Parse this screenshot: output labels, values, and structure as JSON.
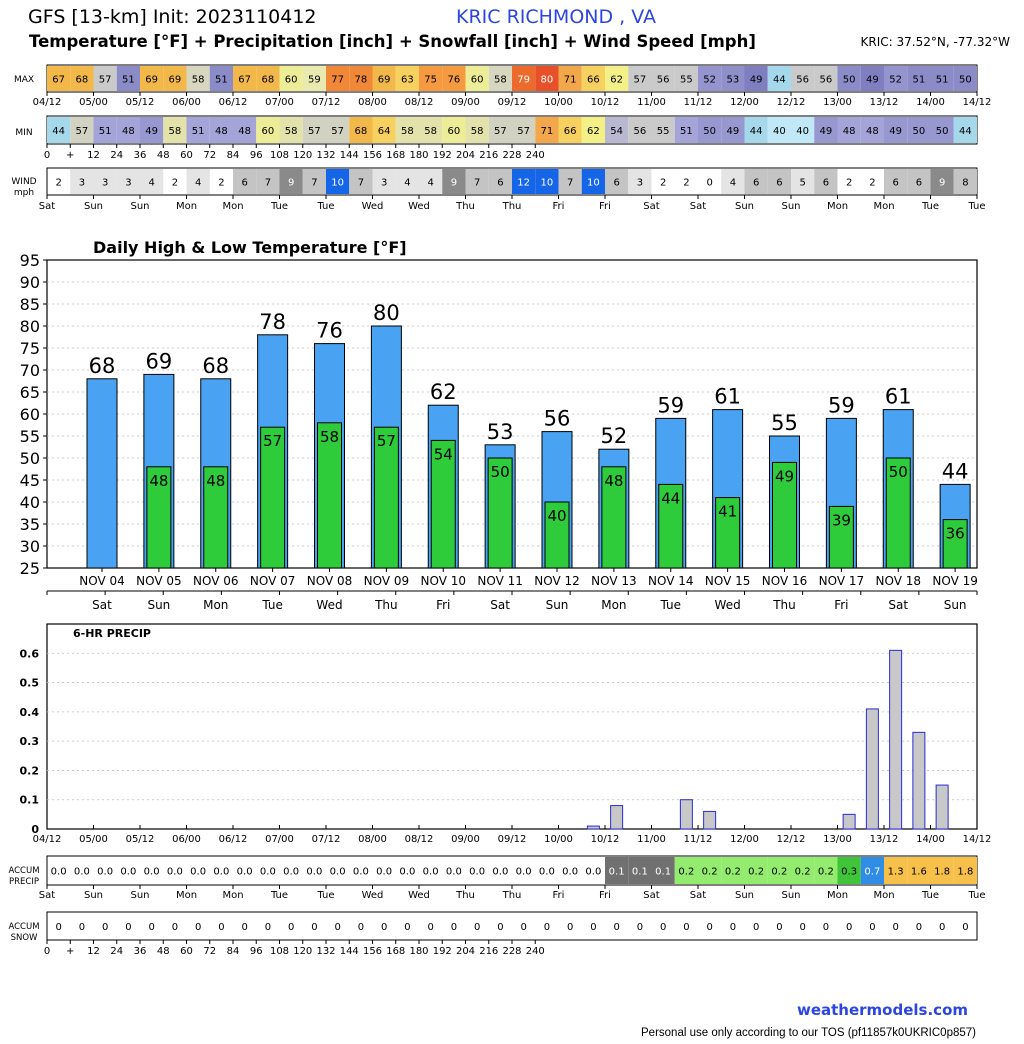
{
  "header": {
    "title": "GFS [13-km] Init: 2023110412",
    "station": "KRIC RICHMOND      , VA",
    "subtitle": "Temperature [°F] + Precipitation [inch] + Snowfall [inch] + Wind Speed [mph]",
    "coords": "KRIC: 37.52°N, -77.32°W"
  },
  "footer": {
    "site": "weathermodels.com",
    "tos": "Personal use only according to our TOS (pf11857k0UKRIC0p857)"
  },
  "strip_labels": {
    "max": "MAX",
    "min": "MIN",
    "wind": "WIND",
    "wind_unit": "mph",
    "accum_precip_1": "ACCUM",
    "accum_precip_2": "PRECIP",
    "accum_snow_1": "ACCUM",
    "accum_snow_2": "SNOW"
  },
  "time_axis": {
    "date_labels": [
      "04/12",
      "05/00",
      "05/12",
      "06/00",
      "06/12",
      "07/00",
      "07/12",
      "08/00",
      "08/12",
      "09/00",
      "09/12",
      "10/00",
      "10/12",
      "11/00",
      "11/12",
      "12/00",
      "12/12",
      "13/00",
      "13/12",
      "14/00",
      "14/12"
    ],
    "hour_labels": [
      "0",
      "+",
      "12",
      "24",
      "36",
      "48",
      "60",
      "72",
      "84",
      "96",
      "108",
      "120",
      "132",
      "144",
      "156",
      "168",
      "180",
      "192",
      "204",
      "216",
      "228",
      "240"
    ],
    "day_labels": [
      "Sat",
      "Sun",
      "Sun",
      "Mon",
      "Mon",
      "Tue",
      "Tue",
      "Wed",
      "Wed",
      "Thu",
      "Thu",
      "Fri",
      "Fri",
      "Sat",
      "Sat",
      "Sun",
      "Sun",
      "Mon",
      "Mon",
      "Tue",
      "Tue"
    ]
  },
  "max_strip": [
    67,
    68,
    57,
    51,
    69,
    69,
    58,
    51,
    67,
    68,
    60,
    59,
    77,
    78,
    69,
    63,
    75,
    76,
    60,
    58,
    79,
    80,
    71,
    66,
    62,
    57,
    56,
    55,
    52,
    53,
    49,
    44,
    56,
    56,
    50,
    49,
    52,
    51,
    51,
    50
  ],
  "min_strip": [
    44,
    57,
    51,
    48,
    49,
    58,
    51,
    48,
    48,
    60,
    58,
    57,
    57,
    68,
    64,
    58,
    58,
    60,
    58,
    57,
    57,
    71,
    66,
    62,
    54,
    56,
    55,
    51,
    50,
    49,
    44,
    40,
    40,
    49,
    48,
    48,
    49,
    50,
    50,
    44
  ],
  "wind_strip": [
    2,
    3,
    3,
    3,
    4,
    2,
    4,
    2,
    6,
    7,
    9,
    7,
    10,
    7,
    3,
    4,
    4,
    9,
    7,
    6,
    12,
    10,
    7,
    10,
    6,
    3,
    2,
    2,
    0,
    4,
    6,
    6,
    5,
    6,
    2,
    2,
    6,
    6,
    9,
    8
  ],
  "accum_precip_strip": [
    "0.0",
    "0.0",
    "0.0",
    "0.0",
    "0.0",
    "0.0",
    "0.0",
    "0.0",
    "0.0",
    "0.0",
    "0.0",
    "0.0",
    "0.0",
    "0.0",
    "0.0",
    "0.0",
    "0.0",
    "0.0",
    "0.0",
    "0.0",
    "0.0",
    "0.0",
    "0.0",
    "0.0",
    "0.1",
    "0.1",
    "0.1",
    "0.2",
    "0.2",
    "0.2",
    "0.2",
    "0.2",
    "0.2",
    "0.2",
    "0.3",
    "0.7",
    "1.3",
    "1.6",
    "1.8",
    "1.8"
  ],
  "accum_snow_strip": [
    0,
    0,
    0,
    0,
    0,
    0,
    0,
    0,
    0,
    0,
    0,
    0,
    0,
    0,
    0,
    0,
    0,
    0,
    0,
    0,
    0,
    0,
    0,
    0,
    0,
    0,
    0,
    0,
    0,
    0,
    0,
    0,
    0,
    0,
    0,
    0,
    0,
    0,
    0,
    0
  ],
  "chart_data": [
    {
      "type": "bar",
      "title": "Daily High & Low Temperature [°F]",
      "categories": [
        "NOV 04",
        "NOV 05",
        "NOV 06",
        "NOV 07",
        "NOV 08",
        "NOV 09",
        "NOV 10",
        "NOV 11",
        "NOV 12",
        "NOV 13",
        "NOV 14",
        "NOV 15",
        "NOV 16",
        "NOV 17",
        "NOV 18",
        "NOV 19"
      ],
      "weekdays": [
        "Sat",
        "Sun",
        "Mon",
        "Tue",
        "Wed",
        "Thu",
        "Fri",
        "Sat",
        "Sun",
        "Mon",
        "Tue",
        "Wed",
        "Thu",
        "Fri",
        "Sat",
        "Sun"
      ],
      "series": [
        {
          "values": [
            68,
            69,
            68,
            78,
            76,
            80,
            62,
            53,
            56,
            52,
            59,
            61,
            55,
            59,
            61,
            44
          ],
          "color": "#4aa3f2"
        },
        {
          "values": [
            null,
            48,
            48,
            57,
            58,
            57,
            54,
            50,
            40,
            48,
            44,
            41,
            49,
            39,
            50,
            36
          ],
          "color": "#2ecc3a"
        }
      ],
      "ylim": [
        25,
        95
      ],
      "yticks": [
        25,
        30,
        35,
        40,
        45,
        50,
        55,
        60,
        65,
        70,
        75,
        80,
        85,
        90,
        95
      ],
      "grid": true
    },
    {
      "type": "bar",
      "title": "6-HR PRECIP",
      "x_labels": [
        "04/12",
        "05/00",
        "05/12",
        "06/00",
        "06/12",
        "07/00",
        "07/12",
        "08/00",
        "08/12",
        "09/00",
        "09/12",
        "10/00",
        "10/12",
        "11/00",
        "11/12",
        "12/00",
        "12/12",
        "13/00",
        "13/12",
        "14/00",
        "14/12"
      ],
      "values": [
        0,
        0,
        0,
        0,
        0,
        0,
        0,
        0,
        0,
        0,
        0,
        0,
        0,
        0,
        0,
        0,
        0,
        0,
        0,
        0,
        0,
        0,
        0,
        0.01,
        0.08,
        0,
        0,
        0.1,
        0.06,
        0,
        0,
        0,
        0,
        0,
        0.05,
        0.41,
        0.61,
        0.33,
        0.15,
        0
      ],
      "ylim": [
        0,
        0.7
      ],
      "yticks": [
        "0",
        "0.1",
        "0.2",
        "0.3",
        "0.4",
        "0.5",
        "0.6"
      ],
      "color": "#c8c8c8",
      "grid": true
    }
  ]
}
